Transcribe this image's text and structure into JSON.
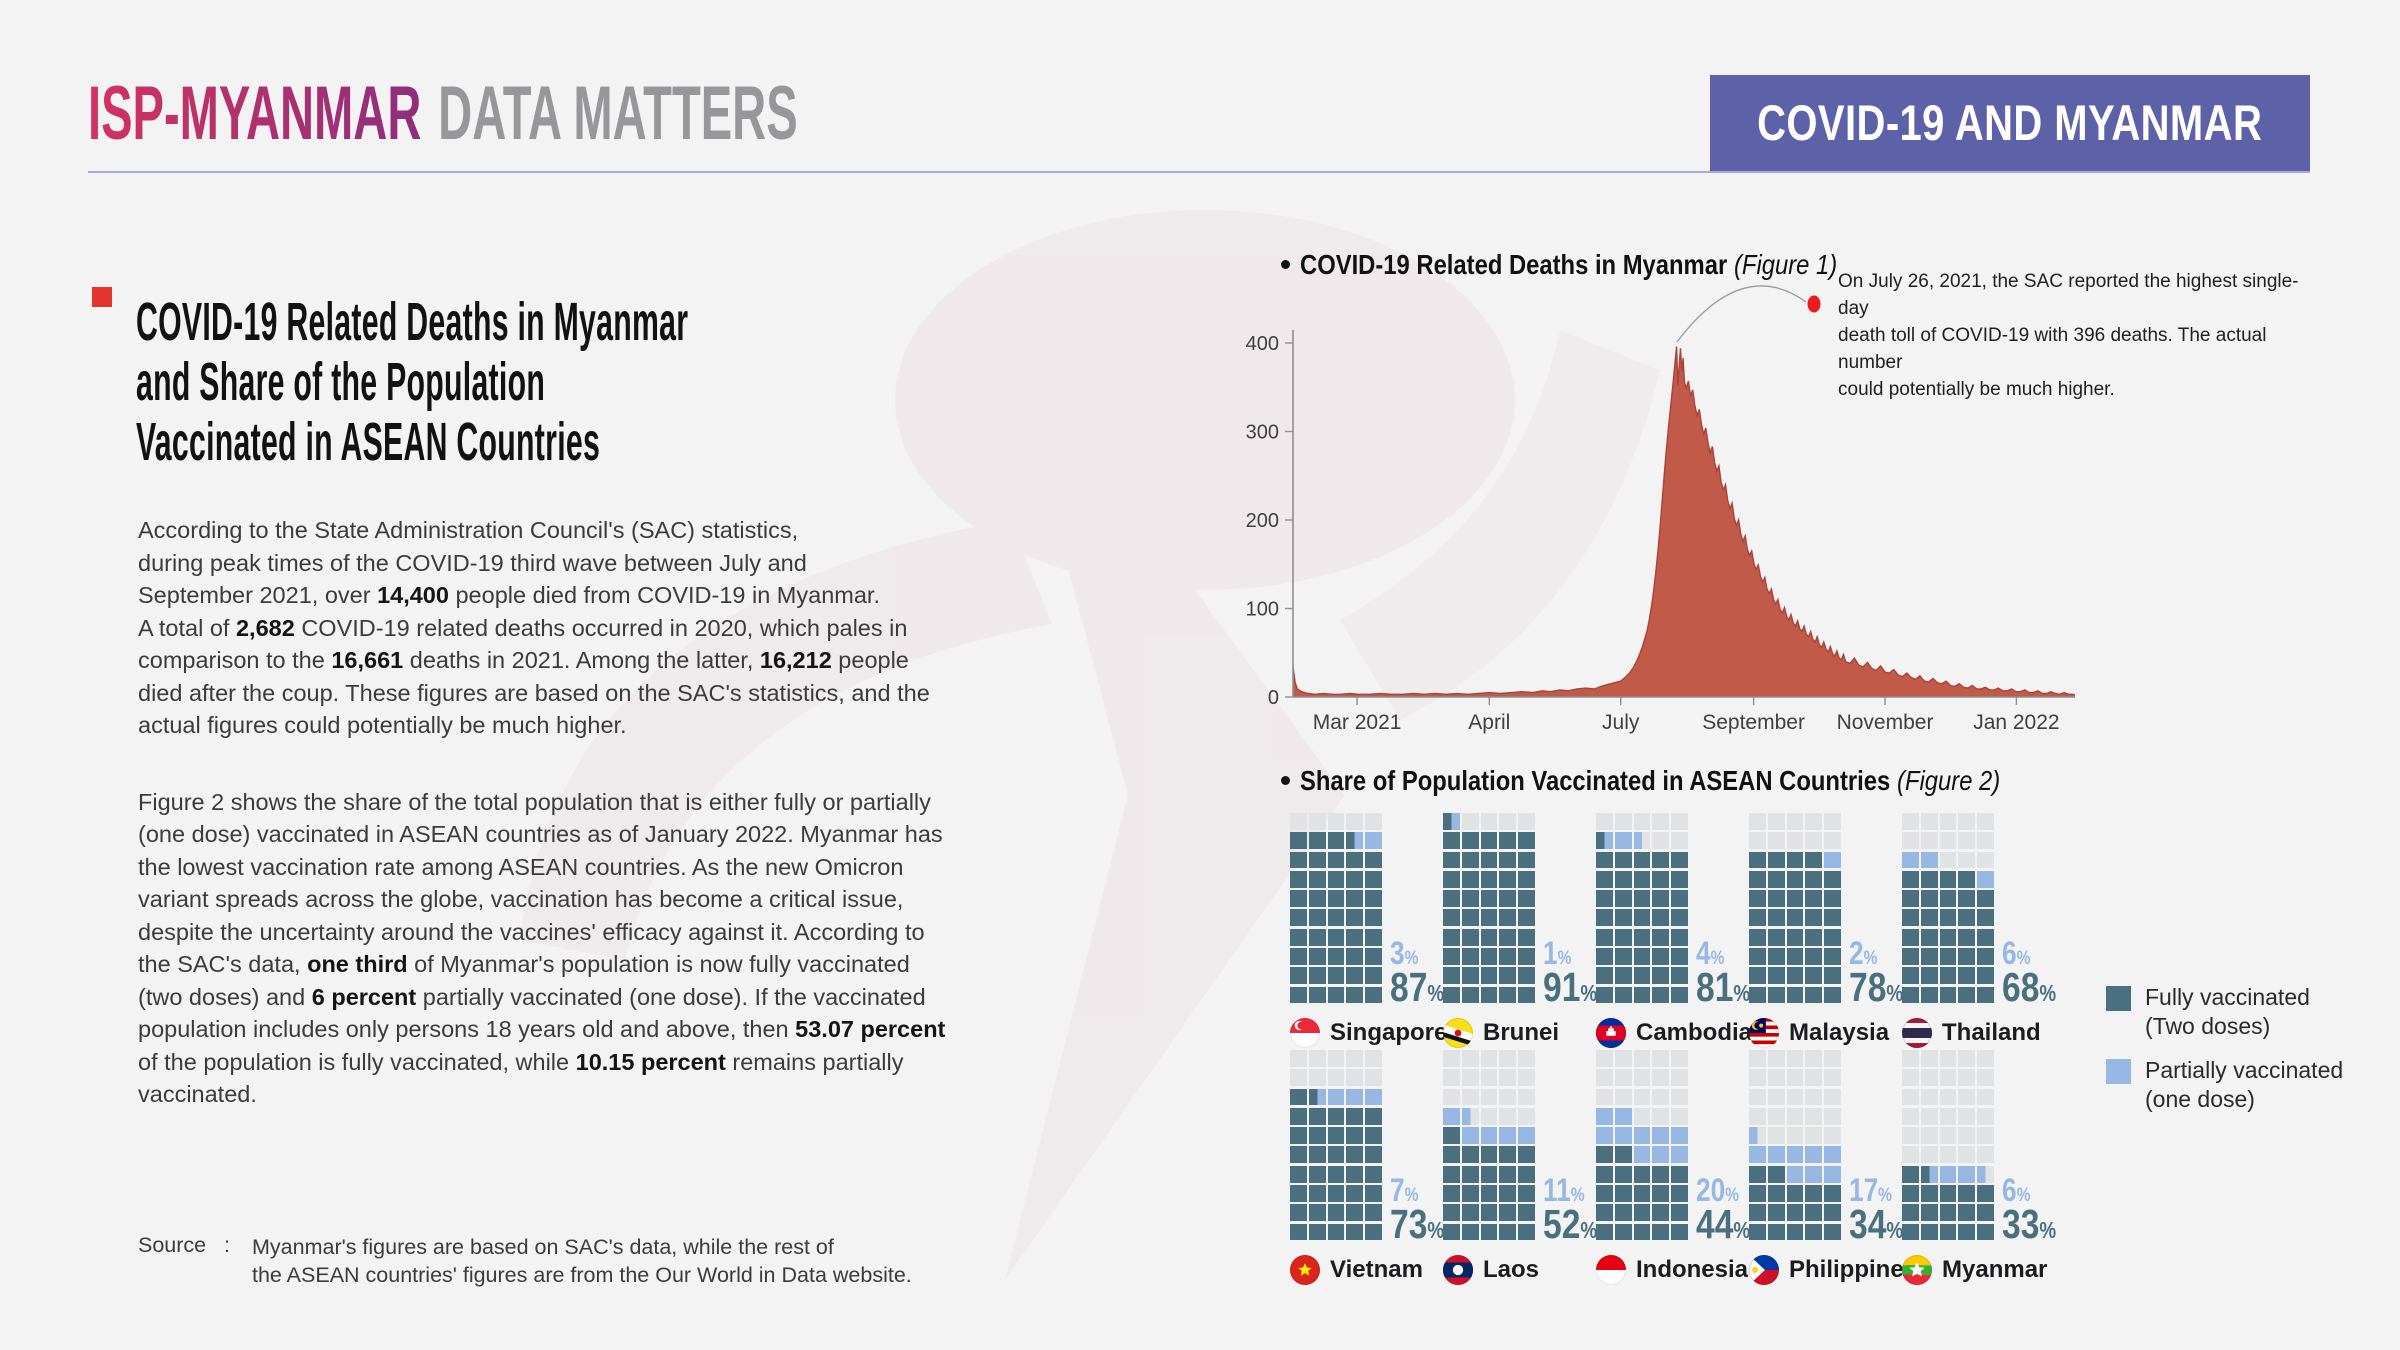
{
  "header": {
    "logo_primary": "ISP-MYANMAR",
    "logo_secondary": "DATA MATTERS",
    "banner": "COVID-19 AND MYANMAR",
    "colors": {
      "logo_gradient_start": "#d23360",
      "logo_gradient_end": "#8e2e7d",
      "logo_secondary": "#97979a",
      "banner_bg": "#5d62a8",
      "rule": "#a7aad6"
    }
  },
  "article": {
    "bullet_color": "#e5332e",
    "title_lines": [
      "COVID-19 Related Deaths in Myanmar",
      "and Share of the Population",
      "Vaccinated in ASEAN Countries"
    ],
    "paragraphs": [
      [
        [
          [
            "According to the State Administration Council's (SAC) statistics,",
            0
          ]
        ],
        [
          [
            "during peak times of the COVID-19 third wave between July and",
            0
          ]
        ],
        [
          [
            "September 2021, over ",
            0
          ],
          [
            "14,400",
            1
          ],
          [
            " people died from COVID-19 in Myanmar.",
            0
          ]
        ],
        [
          [
            "A total of ",
            0
          ],
          [
            "2,682",
            1
          ],
          [
            " COVID-19 related deaths occurred in 2020, which pales in",
            0
          ]
        ],
        [
          [
            "comparison to the ",
            0
          ],
          [
            "16,661",
            1
          ],
          [
            " deaths in 2021. Among the latter, ",
            0
          ],
          [
            "16,212",
            1
          ],
          [
            " people",
            0
          ]
        ],
        [
          [
            "died after the coup. These figures are based on the SAC's statistics, and the",
            0
          ]
        ],
        [
          [
            "actual figures could potentially be much higher.",
            0
          ]
        ]
      ],
      [
        [
          [
            "Figure 2 shows the share of the total population that is either fully or partially",
            0
          ]
        ],
        [
          [
            "(one dose) vaccinated in ASEAN countries as of January 2022. Myanmar has",
            0
          ]
        ],
        [
          [
            "the lowest vaccination rate among ASEAN countries. As the new Omicron",
            0
          ]
        ],
        [
          [
            "variant spreads across the globe, vaccination has become a critical issue,",
            0
          ]
        ],
        [
          [
            "despite the uncertainty around the vaccines' efficacy against it. According to",
            0
          ]
        ],
        [
          [
            "the SAC's data, ",
            0
          ],
          [
            "one third",
            1
          ],
          [
            " of Myanmar's population is now fully vaccinated",
            0
          ]
        ],
        [
          [
            "(two doses) and ",
            0
          ],
          [
            "6 percent",
            1
          ],
          [
            " partially vaccinated (one dose). If the vaccinated",
            0
          ]
        ],
        [
          [
            "population includes only persons 18 years old and above, then ",
            0
          ],
          [
            "53.07 percent",
            1
          ]
        ],
        [
          [
            "of the population is fully vaccinated, while ",
            0
          ],
          [
            "10.15 percent",
            1
          ],
          [
            " remains partially",
            0
          ]
        ],
        [
          [
            "vaccinated.",
            0
          ]
        ]
      ]
    ],
    "source_label": "Source",
    "source_colon": ":",
    "source_lines": [
      "Myanmar's figures are based on SAC's data, while the rest of",
      "the ASEAN countries' figures are from the Our World in Data website."
    ]
  },
  "chart_data": [
    {
      "id": "figure1",
      "type": "area",
      "title": "COVID-19 Related Deaths in Myanmar",
      "figure_label": "(Figure 1)",
      "series_name": "Daily COVID-19 related deaths in Myanmar",
      "x_range_days": [
        0,
        358
      ],
      "ylim": [
        0,
        400
      ],
      "y_ticks": [
        0,
        100,
        200,
        300,
        400
      ],
      "x_ticks": [
        {
          "pos": 0.082,
          "label": "Mar 2021"
        },
        {
          "pos": 0.251,
          "label": "April"
        },
        {
          "pos": 0.419,
          "label": "July"
        },
        {
          "pos": 0.589,
          "label": "September"
        },
        {
          "pos": 0.757,
          "label": "November"
        },
        {
          "pos": 0.925,
          "label": "Jan 2022"
        }
      ],
      "area_color": "#c25a4a",
      "edge_color": "#a8443a",
      "annotation": {
        "dot_color": "#ea1c1c",
        "text_lines": [
          "On July 26, 2021, the SAC reported the highest single-day",
          "death toll of COVID-19 with 396 deaths. The actual number",
          "could potentially be much higher."
        ]
      },
      "points": [
        [
          0,
          34
        ],
        [
          1,
          16
        ],
        [
          2,
          9
        ],
        [
          4,
          6
        ],
        [
          7,
          4
        ],
        [
          10,
          3
        ],
        [
          14,
          4
        ],
        [
          18,
          3
        ],
        [
          22,
          3
        ],
        [
          26,
          4
        ],
        [
          30,
          3
        ],
        [
          35,
          3
        ],
        [
          40,
          4
        ],
        [
          45,
          3
        ],
        [
          50,
          3
        ],
        [
          55,
          4
        ],
        [
          60,
          3
        ],
        [
          65,
          4
        ],
        [
          70,
          3
        ],
        [
          75,
          4
        ],
        [
          80,
          3
        ],
        [
          85,
          4
        ],
        [
          90,
          5
        ],
        [
          95,
          4
        ],
        [
          100,
          5
        ],
        [
          105,
          6
        ],
        [
          110,
          5
        ],
        [
          114,
          7
        ],
        [
          118,
          6
        ],
        [
          122,
          8
        ],
        [
          126,
          7
        ],
        [
          130,
          9
        ],
        [
          134,
          10
        ],
        [
          138,
          9
        ],
        [
          141,
          12
        ],
        [
          144,
          14
        ],
        [
          147,
          16
        ],
        [
          150,
          18
        ],
        [
          152,
          22
        ],
        [
          154,
          27
        ],
        [
          156,
          34
        ],
        [
          158,
          44
        ],
        [
          160,
          57
        ],
        [
          162,
          74
        ],
        [
          163,
          86
        ],
        [
          164,
          100
        ],
        [
          165,
          118
        ],
        [
          166,
          139
        ],
        [
          167,
          163
        ],
        [
          168,
          191
        ],
        [
          169,
          222
        ],
        [
          170,
          252
        ],
        [
          171,
          281
        ],
        [
          172,
          307
        ],
        [
          173,
          331
        ],
        [
          174,
          355
        ],
        [
          175,
          381
        ],
        [
          175.6,
          396
        ],
        [
          176.2,
          352
        ],
        [
          176.8,
          374
        ],
        [
          177.4,
          394
        ],
        [
          178,
          368
        ],
        [
          178.6,
          383
        ],
        [
          179.2,
          356
        ],
        [
          180,
          349
        ],
        [
          181,
          357
        ],
        [
          182,
          340
        ],
        [
          183,
          347
        ],
        [
          184,
          329
        ],
        [
          185,
          318
        ],
        [
          186,
          325
        ],
        [
          187,
          308
        ],
        [
          188,
          297
        ],
        [
          189,
          304
        ],
        [
          190,
          287
        ],
        [
          191,
          276
        ],
        [
          192,
          283
        ],
        [
          193,
          265
        ],
        [
          194,
          255
        ],
        [
          195,
          261
        ],
        [
          196,
          243
        ],
        [
          197,
          234
        ],
        [
          198,
          240
        ],
        [
          199,
          222
        ],
        [
          200,
          213
        ],
        [
          201,
          219
        ],
        [
          202,
          202
        ],
        [
          203,
          194
        ],
        [
          204,
          200
        ],
        [
          205,
          184
        ],
        [
          206,
          176
        ],
        [
          207,
          182
        ],
        [
          208,
          167
        ],
        [
          209,
          160
        ],
        [
          210,
          165
        ],
        [
          211,
          151
        ],
        [
          212,
          144
        ],
        [
          213,
          149
        ],
        [
          214,
          136
        ],
        [
          215,
          130
        ],
        [
          216,
          135
        ],
        [
          217,
          122
        ],
        [
          218,
          117
        ],
        [
          219,
          122
        ],
        [
          220,
          110
        ],
        [
          221,
          105
        ],
        [
          222,
          110
        ],
        [
          223,
          99
        ],
        [
          224,
          95
        ],
        [
          225,
          101
        ],
        [
          226,
          91
        ],
        [
          227,
          87
        ],
        [
          228,
          93
        ],
        [
          229,
          84
        ],
        [
          230,
          80
        ],
        [
          231,
          86
        ],
        [
          232,
          77
        ],
        [
          233,
          74
        ],
        [
          234,
          80
        ],
        [
          235,
          71
        ],
        [
          236,
          68
        ],
        [
          237,
          74
        ],
        [
          238,
          65
        ],
        [
          239,
          62
        ],
        [
          240,
          68
        ],
        [
          241,
          59
        ],
        [
          242,
          56
        ],
        [
          243,
          62
        ],
        [
          244,
          54
        ],
        [
          245,
          51
        ],
        [
          246,
          57
        ],
        [
          247,
          49
        ],
        [
          248,
          46
        ],
        [
          249,
          52
        ],
        [
          250,
          44
        ],
        [
          251,
          42
        ],
        [
          252,
          48
        ],
        [
          253,
          40
        ],
        [
          255,
          38
        ],
        [
          257,
          44
        ],
        [
          259,
          36
        ],
        [
          261,
          34
        ],
        [
          263,
          39
        ],
        [
          265,
          32
        ],
        [
          267,
          30
        ],
        [
          269,
          35
        ],
        [
          271,
          28
        ],
        [
          273,
          27
        ],
        [
          275,
          31
        ],
        [
          277,
          25
        ],
        [
          279,
          23
        ],
        [
          281,
          27
        ],
        [
          283,
          22
        ],
        [
          285,
          20
        ],
        [
          287,
          24
        ],
        [
          289,
          18
        ],
        [
          291,
          17
        ],
        [
          293,
          21
        ],
        [
          295,
          16
        ],
        [
          297,
          15
        ],
        [
          299,
          18
        ],
        [
          301,
          13
        ],
        [
          303,
          12
        ],
        [
          305,
          15
        ],
        [
          307,
          11
        ],
        [
          309,
          10
        ],
        [
          311,
          13
        ],
        [
          313,
          9
        ],
        [
          315,
          9
        ],
        [
          317,
          11
        ],
        [
          319,
          8
        ],
        [
          321,
          8
        ],
        [
          323,
          10
        ],
        [
          325,
          7
        ],
        [
          327,
          7
        ],
        [
          329,
          9
        ],
        [
          331,
          6
        ],
        [
          333,
          6
        ],
        [
          335,
          8
        ],
        [
          337,
          5
        ],
        [
          339,
          5
        ],
        [
          341,
          7
        ],
        [
          343,
          4
        ],
        [
          345,
          4
        ],
        [
          347,
          6
        ],
        [
          349,
          4
        ],
        [
          351,
          3
        ],
        [
          353,
          5
        ],
        [
          355,
          3
        ],
        [
          357,
          3
        ],
        [
          358,
          2
        ]
      ]
    },
    {
      "id": "figure2",
      "type": "waffle",
      "title": "Share of Population Vaccinated in ASEAN Countries",
      "figure_label": "(Figure 2)",
      "columns": 5,
      "rows": 10,
      "cell_percent": 2,
      "pct_symbol": "%",
      "colors": {
        "full": "#4a7080",
        "partial": "#97b8e3",
        "empty": "#e1e2e4"
      },
      "legend": [
        {
          "color_key": "full",
          "label_lines": [
            "Fully vaccinated",
            "(Two doses)"
          ]
        },
        {
          "color_key": "partial",
          "label_lines": [
            "Partially vaccinated",
            "(one dose)"
          ]
        }
      ],
      "countries": [
        {
          "name": "Singapore",
          "flag": "singapore",
          "full": 87,
          "partial": 3,
          "row": 0,
          "col": 0
        },
        {
          "name": "Brunei",
          "flag": "brunei",
          "full": 91,
          "partial": 1,
          "row": 0,
          "col": 1
        },
        {
          "name": "Cambodia",
          "flag": "cambodia",
          "full": 81,
          "partial": 4,
          "row": 0,
          "col": 2
        },
        {
          "name": "Malaysia",
          "flag": "malaysia",
          "full": 78,
          "partial": 2,
          "row": 0,
          "col": 3
        },
        {
          "name": "Thailand",
          "flag": "thailand",
          "full": 68,
          "partial": 6,
          "row": 0,
          "col": 4
        },
        {
          "name": "Vietnam",
          "flag": "vietnam",
          "full": 73,
          "partial": 7,
          "row": 1,
          "col": 0
        },
        {
          "name": "Laos",
          "flag": "laos",
          "full": 52,
          "partial": 11,
          "row": 1,
          "col": 1
        },
        {
          "name": "Indonesia",
          "flag": "indonesia",
          "full": 44,
          "partial": 20,
          "row": 1,
          "col": 2
        },
        {
          "name": "Philippines",
          "flag": "philippines",
          "full": 34,
          "partial": 17,
          "row": 1,
          "col": 3
        },
        {
          "name": "Myanmar",
          "flag": "myanmar",
          "full": 33,
          "partial": 6,
          "row": 1,
          "col": 4
        }
      ]
    }
  ]
}
